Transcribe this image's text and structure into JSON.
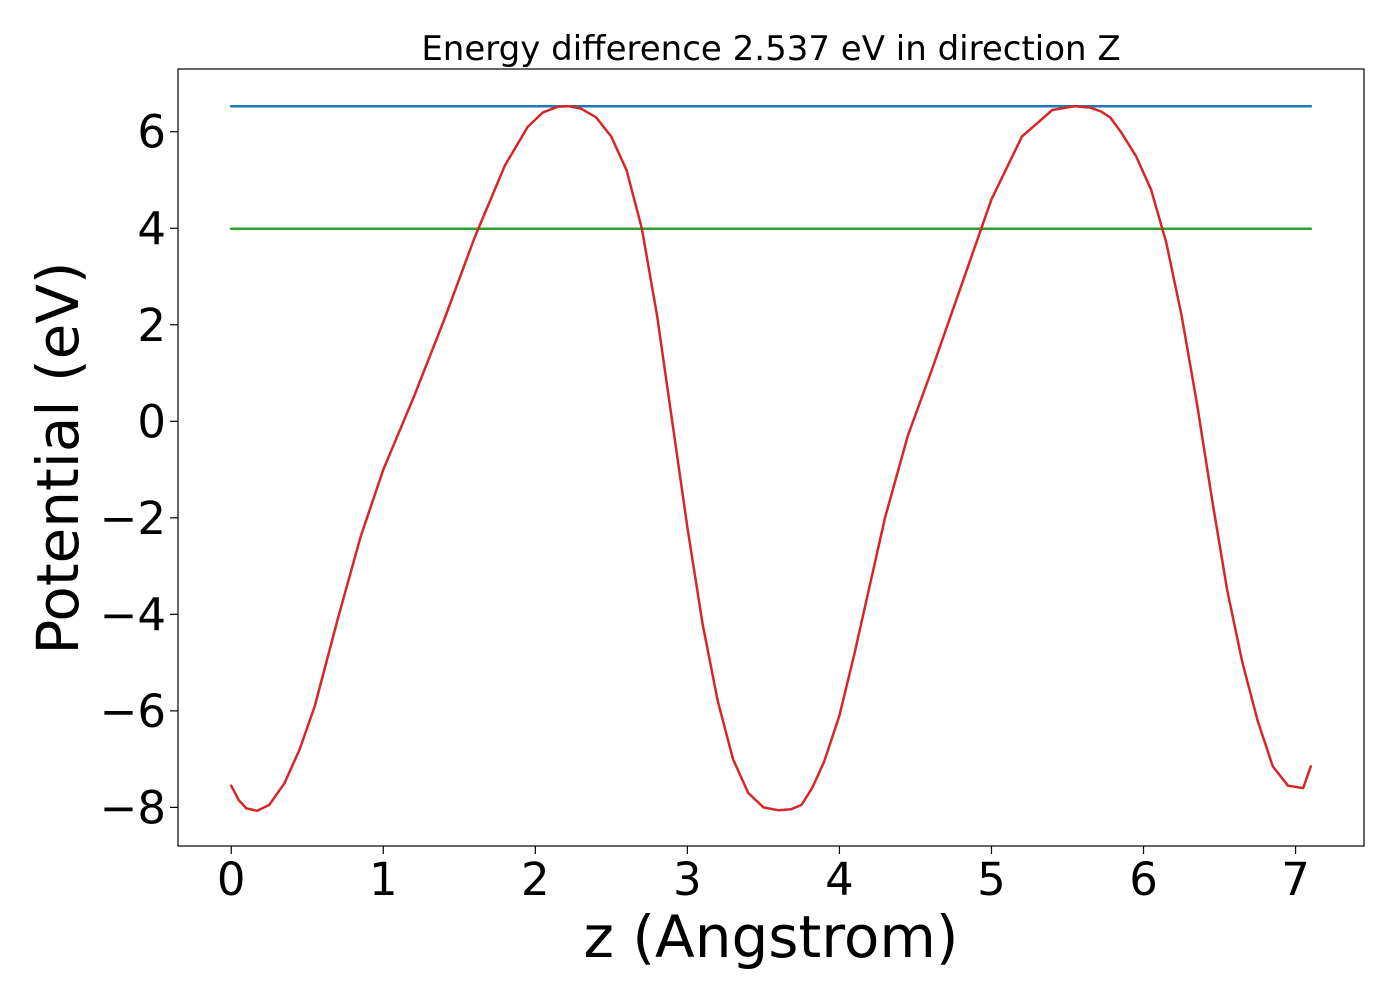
{
  "chart_data": {
    "type": "line",
    "title": "Energy difference 2.537 eV in direction Z",
    "xlabel": "z (Angstrom)",
    "ylabel": "Potential (eV)",
    "xlim": [
      -0.35,
      7.45
    ],
    "ylim": [
      -8.8,
      7.3
    ],
    "x_ticks": [
      0,
      1,
      2,
      3,
      4,
      5,
      6,
      7
    ],
    "x_tick_labels": [
      "0",
      "1",
      "2",
      "3",
      "4",
      "5",
      "6",
      "7"
    ],
    "y_ticks": [
      -8,
      -6,
      -4,
      -2,
      0,
      2,
      4,
      6
    ],
    "y_tick_labels": [
      "−8",
      "−6",
      "−4",
      "−2",
      "0",
      "2",
      "4",
      "6"
    ],
    "grid": false,
    "series": [
      {
        "color": "#1f77b4",
        "x": [
          0,
          7.1
        ],
        "y": [
          6.53,
          6.53
        ]
      },
      {
        "color": "#2ca02c",
        "x": [
          0,
          7.1
        ],
        "y": [
          3.99,
          3.99
        ]
      },
      {
        "color": "#d62728",
        "x": [
          0,
          0.05,
          0.1,
          0.17,
          0.25,
          0.35,
          0.45,
          0.55,
          0.7,
          0.85,
          1.0,
          1.2,
          1.4,
          1.6,
          1.8,
          1.95,
          2.05,
          2.15,
          2.22,
          2.3,
          2.4,
          2.5,
          2.6,
          2.7,
          2.8,
          2.9,
          3.0,
          3.1,
          3.2,
          3.3,
          3.4,
          3.5,
          3.6,
          3.68,
          3.75,
          3.82,
          3.9,
          4.0,
          4.1,
          4.2,
          4.3,
          4.45,
          4.6,
          4.8,
          5.0,
          5.2,
          5.4,
          5.55,
          5.65,
          5.72,
          5.78,
          5.85,
          5.95,
          6.05,
          6.15,
          6.25,
          6.35,
          6.45,
          6.55,
          6.65,
          6.75,
          6.85,
          6.95,
          7.05,
          7.1
        ],
        "y": [
          -7.55,
          -7.85,
          -8.02,
          -8.07,
          -7.95,
          -7.5,
          -6.8,
          -5.9,
          -4.1,
          -2.4,
          -1.0,
          0.5,
          2.1,
          3.8,
          5.3,
          6.1,
          6.4,
          6.52,
          6.53,
          6.48,
          6.3,
          5.9,
          5.2,
          4.0,
          2.2,
          0.0,
          -2.2,
          -4.2,
          -5.8,
          -7.0,
          -7.7,
          -8.0,
          -8.06,
          -8.04,
          -7.95,
          -7.6,
          -7.05,
          -6.1,
          -4.8,
          -3.4,
          -2.0,
          -0.3,
          1.0,
          2.8,
          4.6,
          5.9,
          6.45,
          6.53,
          6.5,
          6.42,
          6.3,
          6.0,
          5.5,
          4.8,
          3.7,
          2.2,
          0.4,
          -1.6,
          -3.5,
          -5.0,
          -6.2,
          -7.15,
          -7.55,
          -7.6,
          -7.15
        ]
      }
    ]
  }
}
